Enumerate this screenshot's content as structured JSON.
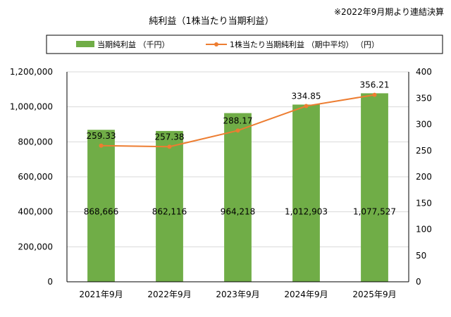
{
  "chart_data": {
    "type": "bar+line",
    "title": "純利益（1株当たり当期利益）",
    "note": "※2022年9月期より連結決算",
    "categories": [
      "2021年9月",
      "2022年9月",
      "2023年9月",
      "2024年9月",
      "2025年9月"
    ],
    "series": [
      {
        "name": "当期純利益 （千円）",
        "type": "bar",
        "axis": "left",
        "color": "#70ad47",
        "values": [
          868666,
          862116,
          964218,
          1012903,
          1077527
        ],
        "labels": [
          "868,666",
          "862,116",
          "964,218",
          "1,012,903",
          "1,077,527"
        ]
      },
      {
        "name": "1株当たり当期純利益 （期中平均） （円）",
        "type": "line",
        "axis": "right",
        "color": "#ed7d31",
        "values": [
          259.33,
          257.38,
          288.17,
          334.85,
          356.21
        ],
        "labels": [
          "259.33",
          "257.38",
          "288.17",
          "334.85",
          "356.21"
        ]
      }
    ],
    "y_left": {
      "min": 0,
      "max": 1200000,
      "step": 200000,
      "ticks": [
        "0",
        "200,000",
        "400,000",
        "600,000",
        "800,000",
        "1,000,000",
        "1,200,000"
      ]
    },
    "y_right": {
      "min": 0,
      "max": 400,
      "step": 50,
      "ticks": [
        "0",
        "50",
        "100",
        "150",
        "200",
        "250",
        "300",
        "350",
        "400"
      ]
    },
    "legend_position": "top"
  }
}
